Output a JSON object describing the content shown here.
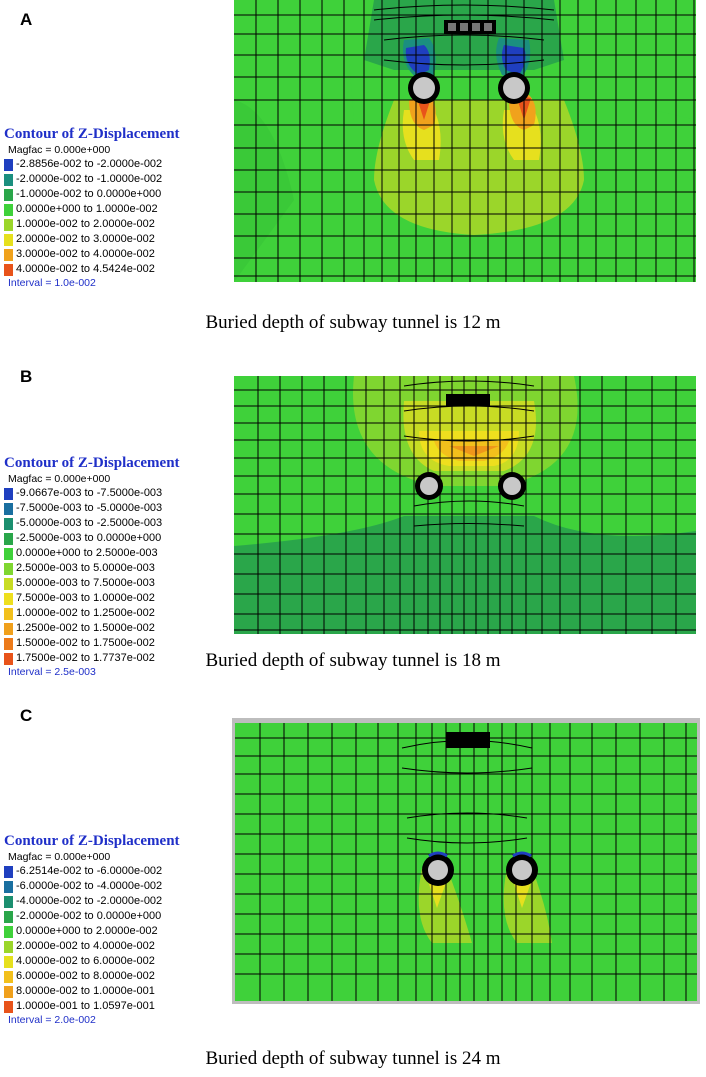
{
  "panels": [
    {
      "letter": "A",
      "legend_title": "Contour of Z-Displacement",
      "magfac": "Magfac =  0.000e+000",
      "ranges": [
        {
          "label": "-2.8856e-002 to -2.0000e-002",
          "color": "#1f3fbf"
        },
        {
          "label": "-2.0000e-002 to -1.0000e-002",
          "color": "#1b8f7f"
        },
        {
          "label": "-1.0000e-002 to  0.0000e+000",
          "color": "#2aa64a"
        },
        {
          "label": " 0.0000e+000 to  1.0000e-002",
          "color": "#3fd13a"
        },
        {
          "label": " 1.0000e-002 to  2.0000e-002",
          "color": "#9bd62a"
        },
        {
          "label": " 2.0000e-002 to  3.0000e-002",
          "color": "#e6e01e"
        },
        {
          "label": " 3.0000e-002 to  4.0000e-002",
          "color": "#f0a21c"
        },
        {
          "label": " 4.0000e-002 to  4.5424e-002",
          "color": "#e8531a"
        }
      ],
      "interval": "Interval =  1.0e-002",
      "caption": "Buried depth of subway tunnel is 12 m"
    },
    {
      "letter": "B",
      "legend_title": "Contour of Z-Displacement",
      "magfac": "Magfac =  0.000e+000",
      "ranges": [
        {
          "label": "-9.0667e-003 to -7.5000e-003",
          "color": "#1f3fbf"
        },
        {
          "label": "-7.5000e-003 to -5.0000e-003",
          "color": "#1a6fa0"
        },
        {
          "label": "-5.0000e-003 to -2.5000e-003",
          "color": "#1b8f6f"
        },
        {
          "label": "-2.5000e-003 to  0.0000e+000",
          "color": "#2aa64a"
        },
        {
          "label": " 0.0000e+000 to  2.5000e-003",
          "color": "#3fd13a"
        },
        {
          "label": " 2.5000e-003 to  5.0000e-003",
          "color": "#7fd630"
        },
        {
          "label": " 5.0000e-003 to  7.5000e-003",
          "color": "#c8dc24"
        },
        {
          "label": " 7.5000e-003 to  1.0000e-002",
          "color": "#eedf1e"
        },
        {
          "label": " 1.0000e-002 to  1.2500e-002",
          "color": "#f2c01c"
        },
        {
          "label": " 1.2500e-002 to  1.5000e-002",
          "color": "#f0a01c"
        },
        {
          "label": " 1.5000e-002 to  1.7500e-002",
          "color": "#ec7a1a"
        },
        {
          "label": " 1.7500e-002 to  1.7737e-002",
          "color": "#e8531a"
        }
      ],
      "interval": "Interval =  2.5e-003",
      "caption": "Buried depth of subway tunnel is 18 m"
    },
    {
      "letter": "C",
      "legend_title": "Contour of Z-Displacement",
      "magfac": "Magfac =  0.000e+000",
      "ranges": [
        {
          "label": "-6.2514e-002 to -6.0000e-002",
          "color": "#1f3fbf"
        },
        {
          "label": "-6.0000e-002 to -4.0000e-002",
          "color": "#1a6fa0"
        },
        {
          "label": "-4.0000e-002 to -2.0000e-002",
          "color": "#1b8f6f"
        },
        {
          "label": "-2.0000e-002 to  0.0000e+000",
          "color": "#2aa64a"
        },
        {
          "label": " 0.0000e+000 to  2.0000e-002",
          "color": "#3fd13a"
        },
        {
          "label": " 2.0000e-002 to  4.0000e-002",
          "color": "#9bd62a"
        },
        {
          "label": " 4.0000e-002 to  6.0000e-002",
          "color": "#e6e01e"
        },
        {
          "label": " 6.0000e-002 to  8.0000e-002",
          "color": "#f2c01c"
        },
        {
          "label": " 8.0000e-002 to  1.0000e-001",
          "color": "#f0a01c"
        },
        {
          "label": " 1.0000e-001 to  1.0597e-001",
          "color": "#e8531a"
        }
      ],
      "interval": "Interval =  2.0e-002",
      "caption": "Buried depth of subway tunnel is 24 m"
    }
  ]
}
